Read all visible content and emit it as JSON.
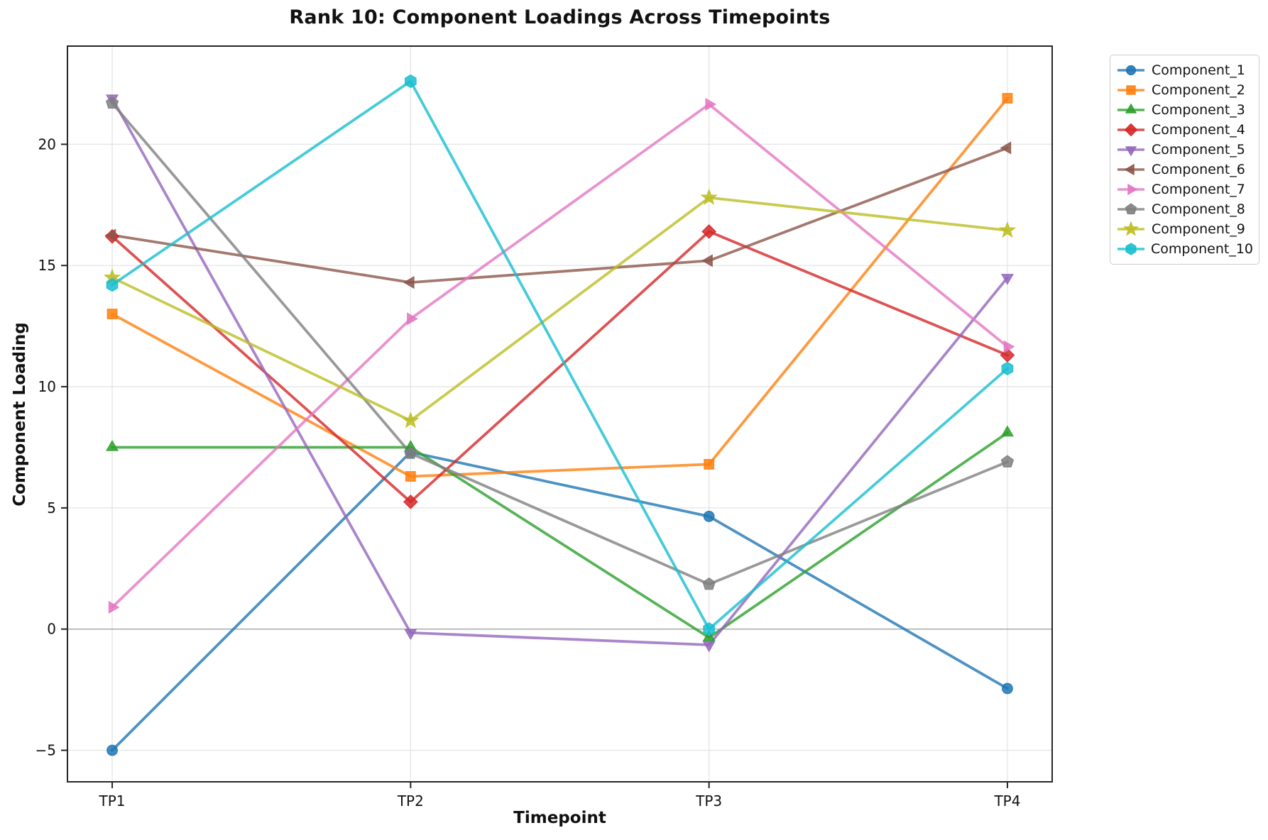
{
  "title": "Rank 10: Component Loadings Across Timepoints",
  "chart_data": {
    "type": "line",
    "title": "Rank 10: Component Loadings Across Timepoints",
    "xlabel": "Timepoint",
    "ylabel": "Component Loading",
    "categories": [
      "TP1",
      "TP2",
      "TP3",
      "TP4"
    ],
    "yticks": [
      -5,
      0,
      5,
      10,
      15,
      20
    ],
    "ylim": [
      -6.3,
      24.05
    ],
    "grid": true,
    "legend_position": "outside-right",
    "series": [
      {
        "name": "Component_1",
        "color": "#1f77b4",
        "marker": "circle",
        "values": [
          -5.0,
          7.3,
          4.65,
          -2.45
        ]
      },
      {
        "name": "Component_2",
        "color": "#ff7f0e",
        "marker": "square",
        "values": [
          13.0,
          6.3,
          6.8,
          21.9
        ]
      },
      {
        "name": "Component_3",
        "color": "#2ca02c",
        "marker": "triangle-up",
        "values": [
          7.5,
          7.5,
          -0.35,
          8.1
        ]
      },
      {
        "name": "Component_4",
        "color": "#d62728",
        "marker": "diamond",
        "values": [
          16.2,
          5.25,
          16.4,
          11.3
        ]
      },
      {
        "name": "Component_5",
        "color": "#9467bd",
        "marker": "triangle-down",
        "values": [
          21.9,
          -0.15,
          -0.65,
          14.5
        ]
      },
      {
        "name": "Component_6",
        "color": "#8c564b",
        "marker": "triangle-left",
        "values": [
          16.25,
          14.3,
          15.2,
          19.85
        ]
      },
      {
        "name": "Component_7",
        "color": "#e377c2",
        "marker": "triangle-right",
        "values": [
          0.9,
          12.8,
          21.65,
          11.65
        ]
      },
      {
        "name": "Component_8",
        "color": "#7f7f7f",
        "marker": "pentagon",
        "values": [
          21.7,
          7.25,
          1.85,
          6.9
        ]
      },
      {
        "name": "Component_9",
        "color": "#bcbd22",
        "marker": "star",
        "values": [
          14.5,
          8.6,
          17.8,
          16.45
        ]
      },
      {
        "name": "Component_10",
        "color": "#17becf",
        "marker": "hexagon",
        "values": [
          14.2,
          22.6,
          0.0,
          10.75
        ]
      }
    ],
    "colors": {
      "grid": "#e4e4e4",
      "zero_line": "#9a9a9a",
      "spine": "#262626",
      "text": "#111111"
    }
  }
}
